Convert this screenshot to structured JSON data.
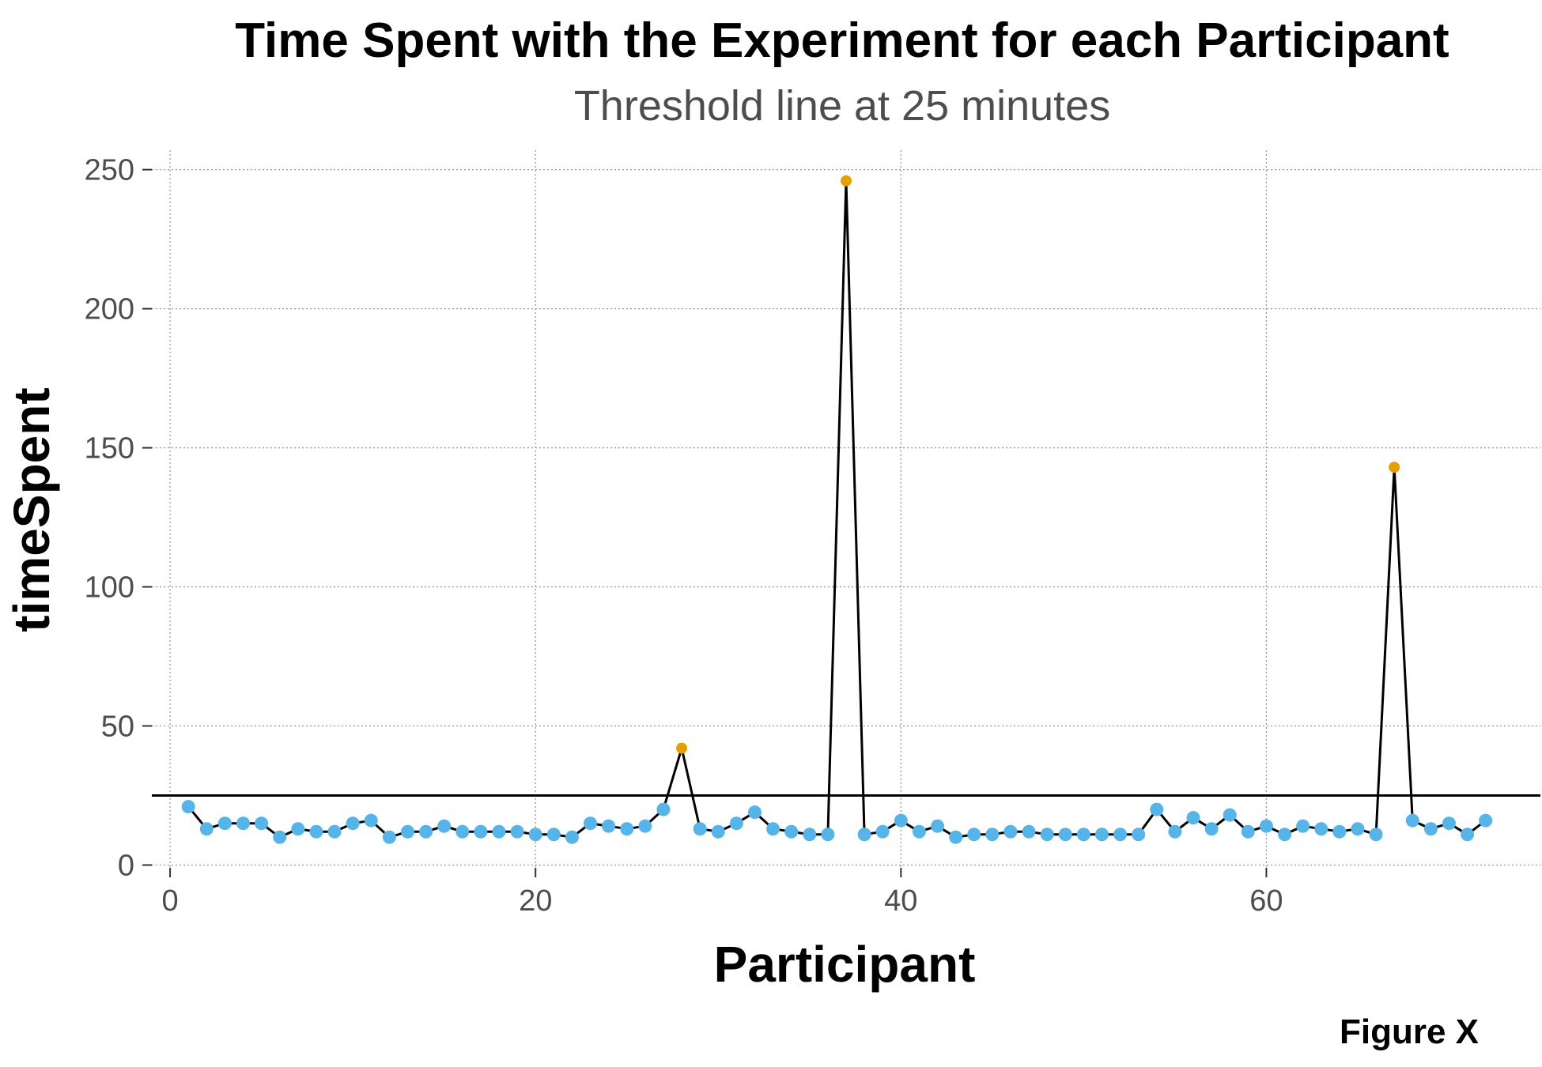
{
  "chart_data": {
    "type": "scatter",
    "title": "Time Spent with the Experiment for each Participant",
    "subtitle": "Threshold line at 25 minutes",
    "xlabel": "Participant",
    "ylabel": "timeSpent",
    "caption": "Figure X",
    "xlim": [
      -1,
      75
    ],
    "ylim": [
      -1,
      257
    ],
    "x_ticks": [
      0,
      20,
      40,
      60
    ],
    "y_ticks": [
      0,
      50,
      100,
      150,
      200,
      250
    ],
    "threshold": 25,
    "grid": true,
    "colors": {
      "normal_point": "#56B4E9",
      "outlier_point": "#E69F00",
      "line": "#000000",
      "threshold_line": "#000000",
      "grid": "#9a9a9a"
    },
    "series": [
      {
        "x": [
          1,
          2,
          3,
          4,
          5,
          6,
          7,
          8,
          9,
          10,
          11,
          12,
          13,
          14,
          15,
          16,
          17,
          18,
          19,
          20,
          21,
          22,
          23,
          24,
          25,
          26,
          27,
          28,
          29,
          30,
          31,
          32,
          33,
          34,
          35,
          36,
          37,
          38,
          39,
          40,
          41,
          42,
          43,
          44,
          45,
          46,
          47,
          48,
          49,
          50,
          51,
          52,
          53,
          54,
          55,
          56,
          57,
          58,
          59,
          60,
          61,
          62,
          63,
          64,
          65,
          66,
          67,
          68,
          69,
          70,
          71,
          72
        ],
        "y": [
          21,
          13,
          15,
          15,
          15,
          10,
          13,
          12,
          12,
          15,
          16,
          10,
          12,
          12,
          14,
          12,
          12,
          12,
          12,
          11,
          11,
          10,
          15,
          14,
          13,
          14,
          20,
          42,
          13,
          12,
          15,
          19,
          13,
          12,
          11,
          11,
          246,
          11,
          12,
          16,
          12,
          14,
          10,
          11,
          11,
          12,
          12,
          11,
          11,
          11,
          11,
          11,
          11,
          20,
          12,
          17,
          13,
          18,
          12,
          14,
          11,
          14,
          13,
          12,
          13,
          11,
          143,
          16,
          13,
          15,
          11,
          16
        ]
      }
    ]
  }
}
